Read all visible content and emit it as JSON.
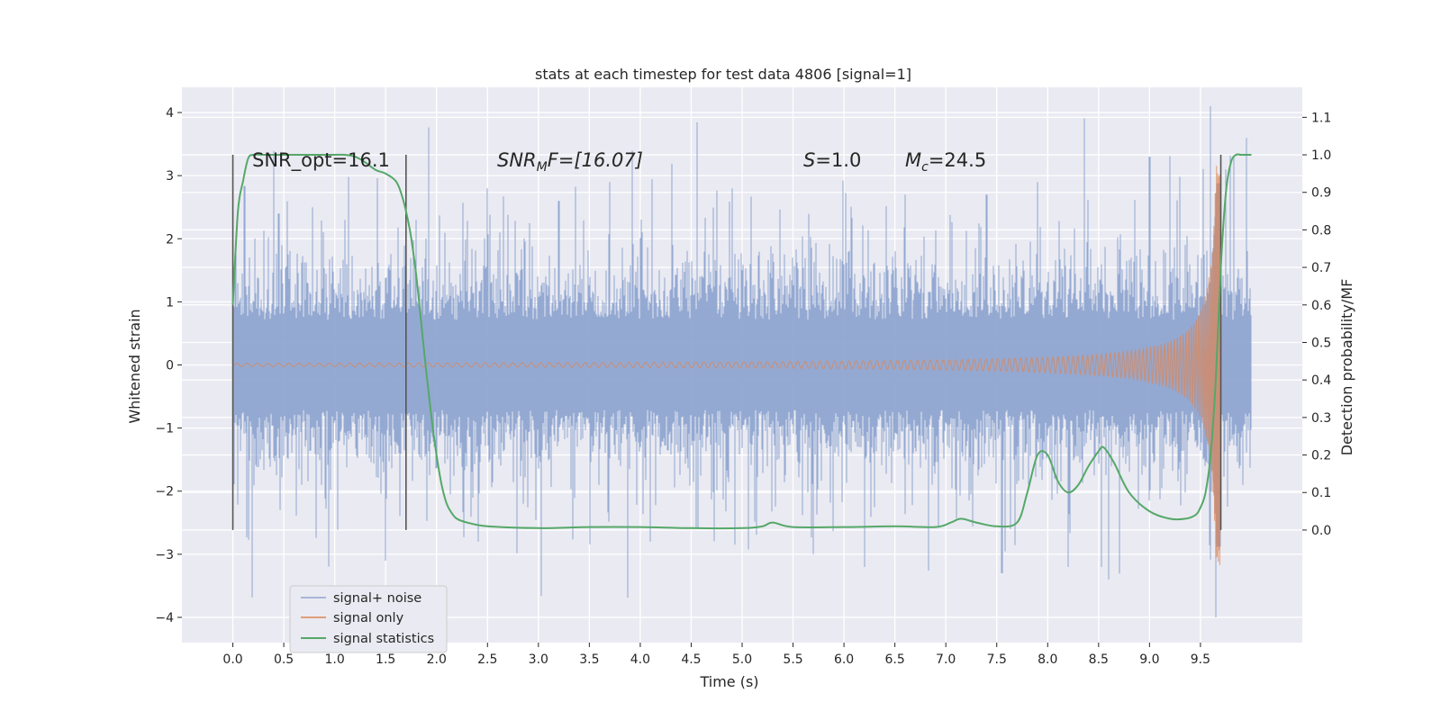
{
  "chart_data": {
    "type": "line",
    "title": "stats at each timestep for test data 4806 [signal=1]",
    "xlabel": "Time (s)",
    "ylabel": "Whitened strain",
    "ylabel_right": "Detection probability/MF",
    "xlim": [
      -0.5,
      10.5
    ],
    "ylim": [
      -4.4,
      4.4
    ],
    "ylim_right": [
      -0.3,
      1.18
    ],
    "x_ticks": [
      "0.0",
      "0.5",
      "1.0",
      "1.5",
      "2.0",
      "2.5",
      "3.0",
      "3.5",
      "4.0",
      "4.5",
      "5.0",
      "5.5",
      "6.0",
      "6.5",
      "7.0",
      "7.5",
      "8.0",
      "8.5",
      "9.0",
      "9.5"
    ],
    "y_ticks": [
      "4",
      "3",
      "2",
      "1",
      "0",
      "−1",
      "−2",
      "−3",
      "−4"
    ],
    "y_ticks_right": [
      "1.1",
      "1.0",
      "0.9",
      "0.8",
      "0.7",
      "0.6",
      "0.5",
      "0.4",
      "0.3",
      "0.2",
      "0.1",
      "0.0"
    ],
    "grid": true,
    "legend_placement": "lower-left",
    "colors": {
      "noise": "#8fa5d0",
      "signal": "#dd8452",
      "stats": "#55a868",
      "background": "#eaeaf2",
      "grid": "#ffffff",
      "vlines": "#555555"
    },
    "annotations": {
      "snr_opt": "SNR_opt=16.1",
      "snr_mf_base": "SNR",
      "snr_mf_sub": "M",
      "snr_mf_value": "F=[16.07]",
      "s_var": "S",
      "s_value": "=1.0",
      "mc_var": "M",
      "mc_sub": "c",
      "mc_value": "=24.5"
    },
    "vertical_lines_x": [
      0.0,
      1.7,
      9.7
    ],
    "vertical_lines_range_right": [
      0.0,
      1.0
    ],
    "noise_series": {
      "name": "signal+ noise",
      "x_range": [
        0.0,
        10.0
      ],
      "typical_envelope": 1.3,
      "peak_spikes": [
        {
          "x": 0.12,
          "y": 2.0
        },
        {
          "x": 0.45,
          "y": 2.4
        },
        {
          "x": 0.78,
          "y": 2.5
        },
        {
          "x": 1.1,
          "y": 2.3
        },
        {
          "x": 1.5,
          "y": -3.1
        },
        {
          "x": 1.8,
          "y": 2.3
        },
        {
          "x": 2.5,
          "y": 2.8
        },
        {
          "x": 3.2,
          "y": 2.6
        },
        {
          "x": 3.7,
          "y": 2.9
        },
        {
          "x": 4.1,
          "y": -2.8
        },
        {
          "x": 4.9,
          "y": 2.8
        },
        {
          "x": 5.7,
          "y": -3.0
        },
        {
          "x": 6.2,
          "y": -3.2
        },
        {
          "x": 6.6,
          "y": 2.7
        },
        {
          "x": 7.4,
          "y": 2.7
        },
        {
          "x": 7.55,
          "y": -3.3
        },
        {
          "x": 7.9,
          "y": 2.9
        },
        {
          "x": 8.2,
          "y": -3.2
        },
        {
          "x": 8.6,
          "y": -3.4
        },
        {
          "x": 9.0,
          "y": 3.3
        },
        {
          "x": 9.6,
          "y": 4.1
        },
        {
          "x": 9.65,
          "y": -4.0
        },
        {
          "x": 9.95,
          "y": 3.6
        }
      ]
    },
    "signal_series": {
      "name": "signal only",
      "x_range": [
        0.0,
        9.7
      ],
      "t_coalescence": 9.7,
      "peak_amplitude": 3.2
    },
    "stats_series": {
      "name": "signal statistics",
      "x": [
        0.0,
        0.05,
        0.1,
        0.15,
        0.2,
        0.3,
        0.5,
        0.7,
        0.9,
        1.0,
        1.1,
        1.2,
        1.3,
        1.4,
        1.5,
        1.6,
        1.65,
        1.7,
        1.75,
        1.8,
        1.85,
        1.9,
        1.95,
        2.0,
        2.05,
        2.1,
        2.15,
        2.2,
        2.3,
        2.5,
        3.0,
        3.5,
        4.0,
        4.5,
        5.0,
        5.2,
        5.3,
        5.5,
        6.0,
        6.5,
        6.9,
        7.05,
        7.15,
        7.3,
        7.5,
        7.7,
        7.8,
        7.9,
        8.0,
        8.1,
        8.2,
        8.3,
        8.4,
        8.5,
        8.55,
        8.65,
        8.8,
        9.0,
        9.2,
        9.35,
        9.45,
        9.5,
        9.55,
        9.6,
        9.65,
        9.7,
        9.75,
        9.8,
        9.85,
        9.9,
        9.95,
        10.0
      ],
      "y": [
        0.6,
        0.85,
        0.93,
        0.99,
        1.0,
        1.0,
        1.0,
        1.0,
        1.0,
        1.0,
        1.0,
        0.995,
        0.98,
        0.96,
        0.95,
        0.93,
        0.9,
        0.85,
        0.78,
        0.68,
        0.55,
        0.42,
        0.3,
        0.2,
        0.12,
        0.07,
        0.045,
        0.03,
        0.02,
        0.01,
        0.005,
        0.008,
        0.008,
        0.005,
        0.005,
        0.01,
        0.02,
        0.008,
        0.008,
        0.01,
        0.008,
        0.02,
        0.03,
        0.02,
        0.01,
        0.02,
        0.1,
        0.2,
        0.2,
        0.13,
        0.1,
        0.12,
        0.17,
        0.21,
        0.22,
        0.18,
        0.1,
        0.05,
        0.03,
        0.03,
        0.04,
        0.06,
        0.1,
        0.2,
        0.4,
        0.7,
        0.9,
        0.98,
        1.0,
        1.0,
        1.0,
        1.0
      ]
    }
  }
}
